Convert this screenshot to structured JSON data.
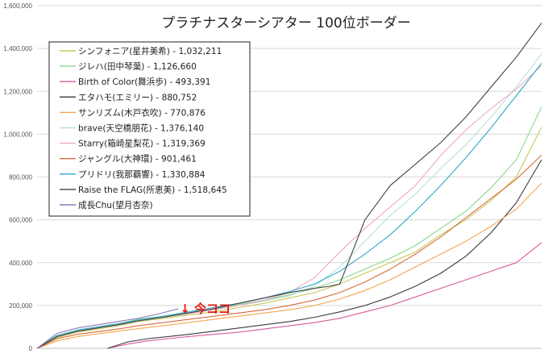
{
  "chart_data": {
    "type": "line",
    "title": "プラチナスターシアター 100位ボーダー",
    "xlabel": "",
    "ylabel": "",
    "ylim": [
      0,
      1600000
    ],
    "y_ticks": [
      "0",
      "200,000",
      "400,000",
      "600,000",
      "800,000",
      "1,000,000",
      "1,200,000",
      "1,400,000",
      "1,600,000"
    ],
    "x_range": [
      0,
      100
    ],
    "grid": true,
    "legend_position": "top-left",
    "annotation": {
      "text": "↓ 今ココ",
      "x": 28,
      "color": "#e8150b"
    },
    "series": [
      {
        "name": "シンフォニア(星井美希) - 1,032,211",
        "color": "#c8c85a",
        "x": [
          0,
          4,
          8,
          12,
          16,
          20,
          25,
          30,
          35,
          40,
          45,
          50,
          55,
          60,
          65,
          70,
          75,
          80,
          85,
          90,
          95,
          100
        ],
        "values": [
          0,
          50000,
          75000,
          90000,
          105000,
          125000,
          140000,
          155000,
          170000,
          190000,
          210000,
          235000,
          260000,
          300000,
          350000,
          400000,
          450000,
          530000,
          600000,
          690000,
          800000,
          1032211
        ]
      },
      {
        "name": "ジレハ(田中琴葉) - 1,126,660",
        "color": "#8ad68a",
        "x": [
          0,
          4,
          8,
          12,
          16,
          20,
          25,
          30,
          35,
          40,
          45,
          50,
          55,
          60,
          65,
          70,
          75,
          80,
          85,
          90,
          95,
          100
        ],
        "values": [
          0,
          60000,
          85000,
          100000,
          115000,
          135000,
          150000,
          165000,
          185000,
          205000,
          225000,
          250000,
          280000,
          320000,
          370000,
          420000,
          480000,
          560000,
          640000,
          750000,
          880000,
          1126660
        ]
      },
      {
        "name": "Birth of Color(舞浜歩) - 493,391",
        "color": "#d9589a",
        "x": [
          14,
          18,
          22,
          26,
          30,
          35,
          40,
          45,
          50,
          55,
          60,
          65,
          70,
          75,
          80,
          85,
          90,
          95,
          100
        ],
        "values": [
          0,
          20000,
          35000,
          45000,
          55000,
          65000,
          75000,
          90000,
          105000,
          120000,
          140000,
          170000,
          200000,
          240000,
          280000,
          320000,
          360000,
          400000,
          493391
        ]
      },
      {
        "name": "エタハモ(エミリー) - 880,752",
        "color": "#3a3a3a",
        "x": [
          14,
          18,
          22,
          26,
          30,
          35,
          40,
          45,
          50,
          55,
          60,
          65,
          70,
          75,
          80,
          85,
          90,
          95,
          100
        ],
        "values": [
          0,
          30000,
          45000,
          55000,
          65000,
          80000,
          95000,
          110000,
          125000,
          145000,
          170000,
          200000,
          240000,
          290000,
          350000,
          430000,
          540000,
          680000,
          880752
        ]
      },
      {
        "name": "サンリズム(木戸衣吹) -  770,876",
        "color": "#f5a64c",
        "x": [
          0,
          4,
          8,
          12,
          16,
          20,
          25,
          30,
          35,
          40,
          45,
          50,
          55,
          60,
          65,
          70,
          75,
          80,
          85,
          90,
          95,
          100
        ],
        "values": [
          0,
          35000,
          55000,
          68000,
          80000,
          92000,
          105000,
          120000,
          135000,
          150000,
          165000,
          180000,
          200000,
          230000,
          270000,
          320000,
          380000,
          440000,
          500000,
          570000,
          650000,
          770876
        ]
      },
      {
        "name": "brave(天空橋朋花) - 1,376,140",
        "color": "#b8e0d8",
        "x": [
          0,
          4,
          8,
          12,
          16,
          20,
          25,
          30,
          35,
          40,
          45,
          50,
          55,
          60,
          65,
          70,
          75,
          80,
          85,
          90,
          95,
          100
        ],
        "values": [
          0,
          55000,
          80000,
          95000,
          110000,
          128000,
          145000,
          162000,
          180000,
          200000,
          220000,
          245000,
          290000,
          380000,
          500000,
          620000,
          720000,
          840000,
          950000,
          1080000,
          1220000,
          1376140
        ]
      },
      {
        "name": "Starry(箱崎星梨花) - 1,319,369",
        "color": "#f0a8c8",
        "x": [
          0,
          4,
          8,
          12,
          16,
          20,
          25,
          30,
          35,
          40,
          45,
          50,
          55,
          60,
          65,
          70,
          75,
          80,
          85,
          90,
          95,
          100
        ],
        "values": [
          0,
          55000,
          80000,
          95000,
          110000,
          128000,
          145000,
          162000,
          180000,
          200000,
          225000,
          260000,
          330000,
          450000,
          560000,
          660000,
          760000,
          900000,
          1020000,
          1120000,
          1210000,
          1319369
        ]
      },
      {
        "name": "ジャングル(大神環) - 901,461",
        "color": "#d86a3a",
        "x": [
          0,
          4,
          8,
          12,
          16,
          20,
          25,
          30,
          35,
          40,
          45,
          50,
          55,
          60,
          65,
          70,
          75,
          80,
          85,
          90,
          95,
          100
        ],
        "values": [
          0,
          45000,
          65000,
          78000,
          90000,
          105000,
          120000,
          135000,
          150000,
          165000,
          180000,
          200000,
          225000,
          260000,
          310000,
          370000,
          440000,
          520000,
          610000,
          700000,
          790000,
          901461
        ]
      },
      {
        "name": "プリドリ(我那覇響) - 1,330,884",
        "color": "#2ea8c8",
        "x": [
          0,
          4,
          8,
          12,
          16,
          20,
          25,
          30,
          35,
          40,
          45,
          50,
          55,
          60,
          65,
          70,
          75,
          80,
          85,
          90,
          95,
          100
        ],
        "values": [
          0,
          60000,
          85000,
          100000,
          115000,
          132000,
          150000,
          170000,
          190000,
          210000,
          235000,
          265000,
          300000,
          360000,
          440000,
          530000,
          640000,
          760000,
          890000,
          1030000,
          1180000,
          1330884
        ]
      },
      {
        "name": "Raise the FLAG(所恵美) - 1,518,645",
        "color": "#404040",
        "x": [
          0,
          4,
          8,
          12,
          16,
          20,
          25,
          30,
          35,
          40,
          45,
          50,
          55,
          58,
          60,
          62,
          65,
          70,
          75,
          80,
          85,
          90,
          95,
          100
        ],
        "values": [
          0,
          55000,
          80000,
          95000,
          110000,
          128000,
          145000,
          165000,
          185000,
          210000,
          235000,
          260000,
          280000,
          290000,
          300000,
          420000,
          600000,
          760000,
          860000,
          960000,
          1080000,
          1220000,
          1360000,
          1518645
        ]
      },
      {
        "name": "成長Chu(望月杏奈)",
        "color": "#8a7ab8",
        "x": [
          0,
          4,
          8,
          12,
          16,
          20,
          24,
          28
        ],
        "values": [
          0,
          70000,
          95000,
          110000,
          125000,
          140000,
          160000,
          185000
        ]
      }
    ]
  }
}
